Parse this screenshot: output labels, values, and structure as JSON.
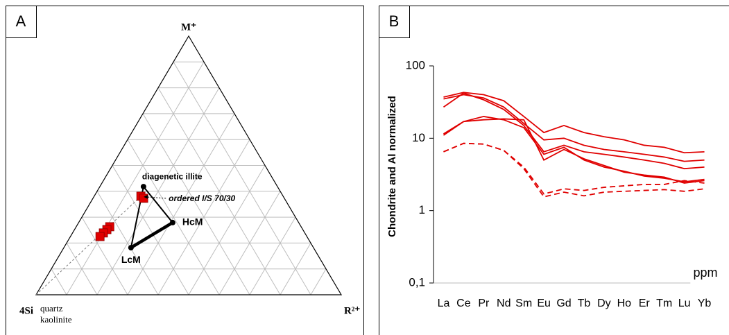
{
  "chart_data": [
    {
      "type": "ternary",
      "panel_label": "A",
      "vertices": {
        "top": "M⁺",
        "left": "4Si",
        "right": "R²⁺"
      },
      "corner_note": [
        "quartz",
        "kaolinite"
      ],
      "grid": true,
      "grid_divisions": 10,
      "points": [
        {
          "label": "diagenetic illite",
          "m": 0.418,
          "r": 0.143
        },
        {
          "label": "HcM",
          "m": 0.279,
          "r": 0.308
        },
        {
          "label": "LcM",
          "m": 0.182,
          "r": 0.22
        }
      ],
      "annotation": {
        "text": "ordered I/S 70/30",
        "m": 0.381,
        "r": 0.153
      },
      "samples": {
        "color": "#e00000",
        "m": [
          0.381,
          0.373,
          0.263,
          0.252,
          0.239,
          0.225
        ],
        "r": [
          0.153,
          0.166,
          0.11,
          0.106,
          0.101,
          0.097
        ]
      }
    },
    {
      "type": "line",
      "panel_label": "B",
      "ylabel": "Chondrite and Al normalized",
      "xlabel": "ppm",
      "log_scale": true,
      "ylim": [
        0.1,
        100
      ],
      "yticks": [
        {
          "value": 0.1,
          "label": "0,1"
        },
        1,
        10,
        100
      ],
      "categories": [
        "La",
        "Ce",
        "Pr",
        "Nd",
        "Sm",
        "Eu",
        "Gd",
        "Tb",
        "Dy",
        "Ho",
        "Er",
        "Tm",
        "Lu",
        "Yb"
      ],
      "series": [
        {
          "color": "#e00000",
          "dashed": false,
          "values": [
            37,
            43,
            40,
            33,
            20,
            12,
            15,
            12,
            10.5,
            9.5,
            8,
            7.5,
            6.3,
            6.5
          ]
        },
        {
          "color": "#e00000",
          "dashed": false,
          "values": [
            35,
            40,
            36,
            27,
            16,
            9.5,
            10,
            8,
            7,
            6.5,
            6,
            5.5,
            4.8,
            5
          ]
        },
        {
          "color": "#e00000",
          "dashed": false,
          "values": [
            27,
            42,
            34,
            25,
            15,
            6.5,
            8,
            6.5,
            6,
            5.5,
            5,
            4.5,
            3.8,
            4
          ]
        },
        {
          "color": "#e00000",
          "dashed": false,
          "values": [
            11,
            17,
            20,
            18,
            14,
            6,
            7.5,
            5,
            4,
            3.5,
            3,
            2.8,
            2.5,
            2.7
          ]
        },
        {
          "color": "#e00000",
          "dashed": false,
          "values": [
            11.5,
            17,
            18,
            18.5,
            18,
            5,
            7,
            5.2,
            4.2,
            3.4,
            3.1,
            2.9,
            2.4,
            2.6
          ]
        },
        {
          "color": "#e00000",
          "dashed": true,
          "values": [
            6.5,
            8.5,
            8.3,
            6.8,
            4,
            1.7,
            2,
            1.9,
            2.1,
            2.2,
            2.3,
            2.3,
            2.6,
            2.4
          ]
        },
        {
          "color": "#e00000",
          "dashed": true,
          "values": [
            6.5,
            8.5,
            8.3,
            6.8,
            3.8,
            1.55,
            1.8,
            1.6,
            1.8,
            1.85,
            1.9,
            1.95,
            1.85,
            2
          ]
        }
      ]
    }
  ]
}
